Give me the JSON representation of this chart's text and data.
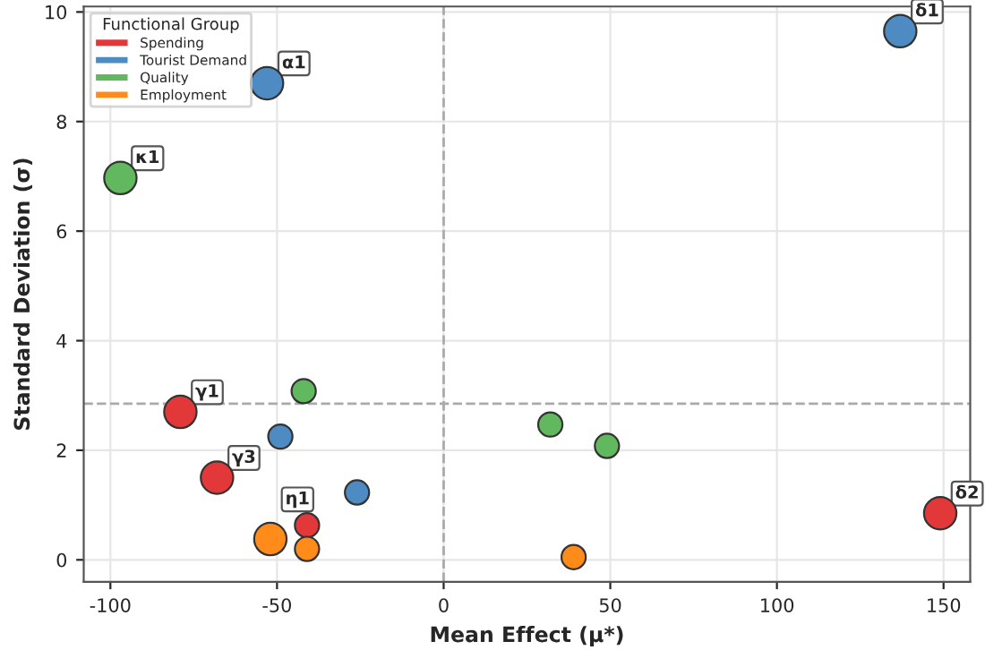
{
  "chart_data": {
    "type": "bubble",
    "xlabel": "Mean Effect (μ*)",
    "ylabel": "Standard Deviation (σ)",
    "legend_title": "Functional Group",
    "legend": "top left",
    "grid": true,
    "marker": "circle",
    "xlim": [
      -108,
      158
    ],
    "ylim": [
      -0.4,
      10.1
    ],
    "xticks": [
      -100,
      -50,
      0,
      50,
      100,
      150
    ],
    "yticks": [
      0,
      2,
      4,
      6,
      8,
      10
    ],
    "series": [
      {
        "name": "Spending",
        "color": "#e3383a",
        "x": [
          -79,
          -68,
          -41,
          149
        ],
        "values": [
          2.7,
          1.5,
          0.63,
          0.85
        ],
        "sizes": [
          1,
          1,
          0.56,
          1
        ]
      },
      {
        "name": "Tourist Demand",
        "color": "#4f8bc3",
        "x": [
          -53,
          -49,
          -26,
          137
        ],
        "values": [
          8.7,
          2.25,
          1.23,
          9.65
        ],
        "sizes": [
          1,
          0.56,
          0.56,
          1
        ]
      },
      {
        "name": "Quality",
        "color": "#62b85f",
        "x": [
          -97,
          -42,
          32,
          49
        ],
        "values": [
          6.97,
          3.08,
          2.47,
          2.08
        ],
        "sizes": [
          1,
          0.56,
          0.56,
          0.56
        ]
      },
      {
        "name": "Employment",
        "color": "#ff8c1a",
        "x": [
          -52,
          -41,
          39
        ],
        "values": [
          0.38,
          0.2,
          0.05
        ],
        "sizes": [
          1,
          0.56,
          0.56
        ]
      }
    ],
    "ref_lines": [
      {
        "axis": "x",
        "value": 0,
        "line_style": "dashed",
        "color": "#aaaaaa"
      },
      {
        "axis": "y",
        "value": 2.85,
        "line_style": "dashed",
        "color": "#aaaaaa"
      }
    ],
    "annotations": [
      {
        "text": "α1",
        "x": -53,
        "y": 8.7
      },
      {
        "text": "κ1",
        "x": -97,
        "y": 6.97
      },
      {
        "text": "γ1",
        "x": -79,
        "y": 2.7
      },
      {
        "text": "γ3",
        "x": -68,
        "y": 1.5
      },
      {
        "text": "η1",
        "x": -52,
        "y": 0.38
      },
      {
        "text": "δ1",
        "x": 137,
        "y": 9.65
      },
      {
        "text": "δ2",
        "x": 149,
        "y": 0.85
      }
    ]
  }
}
